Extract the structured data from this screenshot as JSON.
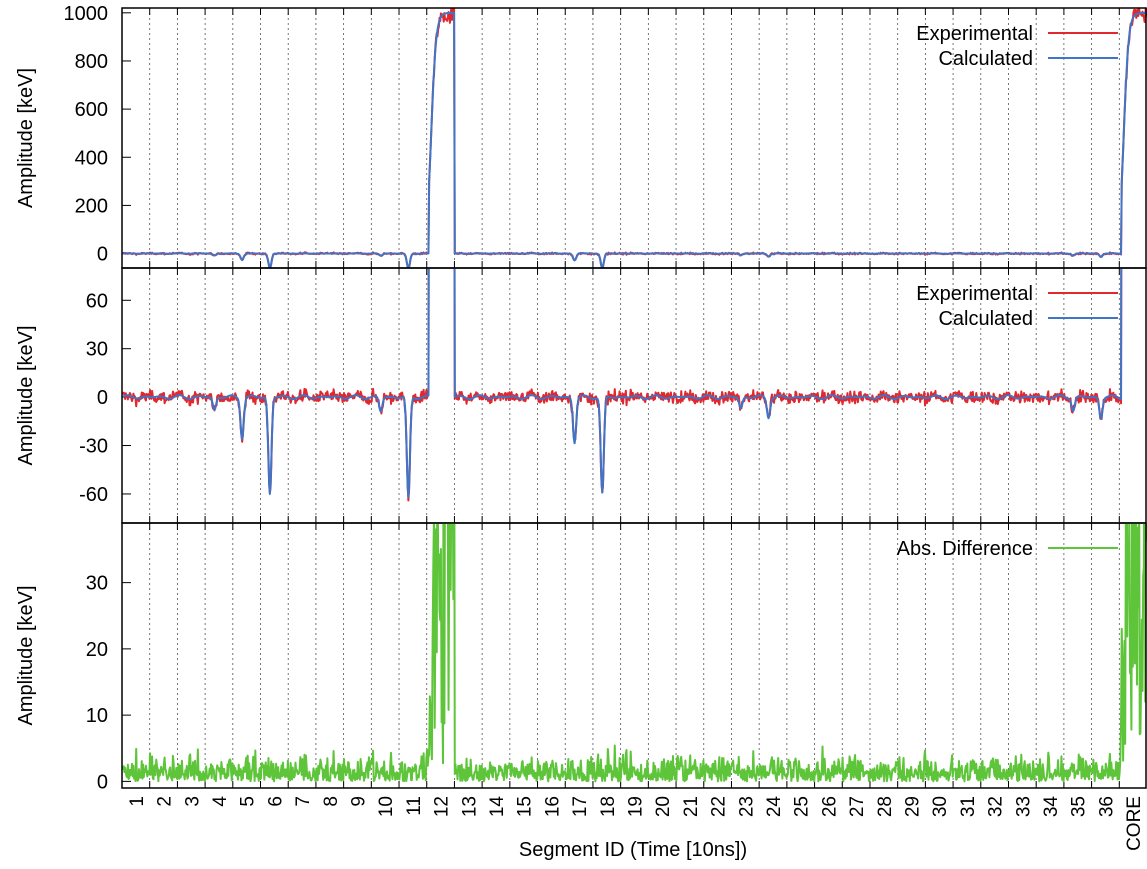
{
  "chart_data": [
    {
      "type": "line",
      "panel": "full-range",
      "ylabel": "Amplitude [keV]",
      "ylim": [
        -60,
        1020
      ],
      "yticks": [
        0,
        200,
        400,
        600,
        800,
        1000
      ],
      "series": [
        {
          "name": "Experimental",
          "color": "#e0282e"
        },
        {
          "name": "Calculated",
          "color": "#3f74c6"
        }
      ],
      "legend": "top-right",
      "grid": "vertical dashed at segment boundaries"
    },
    {
      "type": "line",
      "panel": "zoomed",
      "ylabel": "Amplitude [keV]",
      "ylim": [
        -78,
        80
      ],
      "yticks": [
        -60,
        -30,
        0,
        30,
        60
      ],
      "series": [
        {
          "name": "Experimental",
          "color": "#e0282e"
        },
        {
          "name": "Calculated",
          "color": "#3f74c6"
        }
      ],
      "legend": "top-right"
    },
    {
      "type": "line",
      "panel": "difference",
      "ylabel": "Amplitude [keV]",
      "ylim": [
        -1,
        39
      ],
      "yticks": [
        0,
        10,
        20,
        30
      ],
      "series": [
        {
          "name": "Abs. Difference",
          "color": "#5ec43a"
        }
      ],
      "legend": "top-right"
    }
  ],
  "x_axis": {
    "label": "Segment ID (Time [10ns])",
    "categories": [
      "1",
      "2",
      "3",
      "4",
      "5",
      "6",
      "7",
      "8",
      "9",
      "10",
      "11",
      "12",
      "13",
      "14",
      "15",
      "16",
      "17",
      "18",
      "19",
      "20",
      "21",
      "22",
      "23",
      "24",
      "25",
      "26",
      "27",
      "28",
      "29",
      "30",
      "31",
      "32",
      "33",
      "34",
      "35",
      "36",
      "CORE"
    ],
    "samples_per_segment": 40
  },
  "signal_model": {
    "hit_segments": [
      "12",
      "CORE"
    ],
    "hit_amplitude": 1000,
    "neighbor_dips": [
      {
        "segment": "5",
        "depth": -25
      },
      {
        "segment": "6",
        "depth": -60
      },
      {
        "segment": "11",
        "depth": -63
      },
      {
        "segment": "17",
        "depth": -28
      },
      {
        "segment": "18",
        "depth": -60
      },
      {
        "segment": "24",
        "depth": -12
      },
      {
        "segment": "36",
        "depth": -13
      },
      {
        "segment": "4",
        "depth": -8
      },
      {
        "segment": "10",
        "depth": -9
      },
      {
        "segment": "23",
        "depth": -7
      },
      {
        "segment": "35",
        "depth": -8
      }
    ]
  }
}
